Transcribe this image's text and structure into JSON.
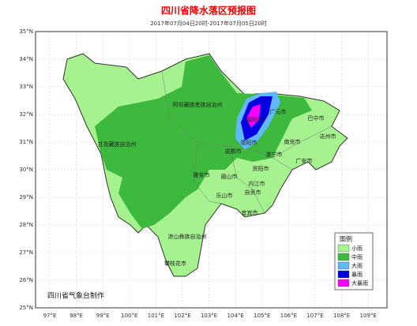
{
  "title": "四川省降水落区预报图",
  "subtitle": "2017年07月04日20时-2017年07月05日20时",
  "map": {
    "lat_labels": [
      "35°N",
      "34°N",
      "33°N",
      "32°N",
      "31°N",
      "30°N",
      "29°N",
      "28°N",
      "27°N",
      "26°N",
      "25°N"
    ],
    "lon_labels": [
      "97°E",
      "98°E",
      "99°E",
      "100°E",
      "101°E",
      "102°E",
      "103°E",
      "104°E",
      "105°E",
      "106°E",
      "107°E",
      "108°E",
      "109°E"
    ],
    "places": [
      "阿坝藏族羌族自治州",
      "甘孜藏族自治州",
      "凉山彝族自治州",
      "攀枝花市",
      "绵阳市",
      "广元市",
      "巴中市",
      "达州市",
      "南充市",
      "德阳市",
      "成都市",
      "遂宁市",
      "广安市",
      "雅安市",
      "眉山市",
      "资阳市",
      "乐山市",
      "内江市",
      "自贡市",
      "宜宾市"
    ]
  },
  "legend": {
    "title": "图例",
    "items": [
      {
        "label": "小雨",
        "color": "#a6f28f"
      },
      {
        "label": "中雨",
        "color": "#3dba3d"
      },
      {
        "label": "大雨",
        "color": "#61b8ff"
      },
      {
        "label": "暴雨",
        "color": "#0000e1"
      },
      {
        "label": "大暴雨",
        "color": "#fa00fa"
      }
    ]
  },
  "footer": "四川省气象台制作"
}
